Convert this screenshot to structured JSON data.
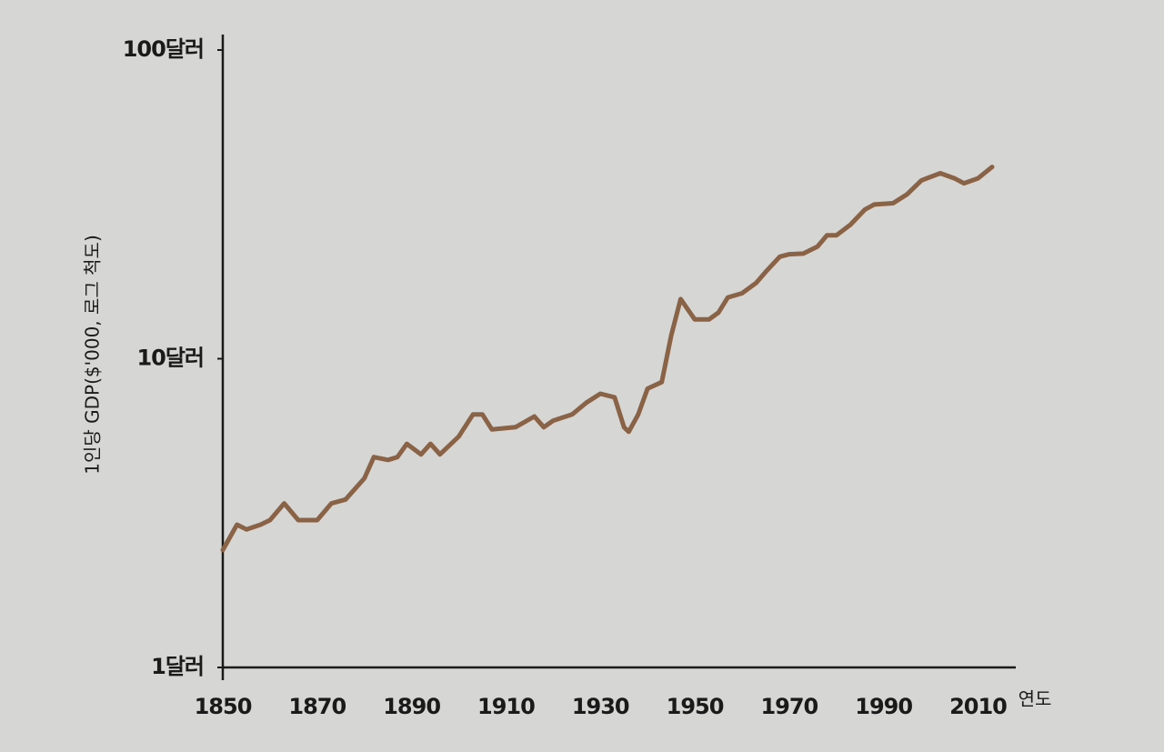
{
  "chart_data": {
    "type": "line",
    "x_label": "연도",
    "y_label": "1인당 GDP($'000, 로그 척도)",
    "x": [
      1850,
      1853,
      1855,
      1858,
      1860,
      1863,
      1866,
      1870,
      1873,
      1876,
      1880,
      1882,
      1885,
      1887,
      1889,
      1892,
      1894,
      1896,
      1900,
      1903,
      1905,
      1907,
      1912,
      1916,
      1918,
      1920,
      1924,
      1927,
      1930,
      1933,
      1935,
      1936,
      1938,
      1940,
      1943,
      1945,
      1947,
      1950,
      1953,
      1955,
      1957,
      1960,
      1963,
      1965,
      1968,
      1970,
      1973,
      1976,
      1978,
      1980,
      1983,
      1986,
      1988,
      1992,
      1995,
      1998,
      2002,
      2005,
      2007,
      2010,
      2013
    ],
    "values": [
      2.4,
      2.9,
      2.8,
      2.9,
      3.0,
      3.4,
      3.0,
      3.0,
      3.4,
      3.5,
      4.1,
      4.8,
      4.7,
      4.8,
      5.3,
      4.9,
      5.3,
      4.9,
      5.6,
      6.6,
      6.6,
      5.9,
      6.0,
      6.5,
      6.0,
      6.3,
      6.6,
      7.2,
      7.7,
      7.5,
      6.0,
      5.8,
      6.6,
      8.0,
      8.4,
      11.9,
      15.6,
      13.4,
      13.4,
      14.1,
      15.8,
      16.3,
      17.6,
      19.1,
      21.4,
      21.8,
      21.9,
      23.1,
      25.1,
      25.1,
      27.2,
      30.4,
      31.6,
      31.9,
      34.1,
      37.8,
      39.9,
      38.4,
      37.0,
      38.4,
      41.8
    ],
    "color": "#8a6246",
    "xlim": [
      1850,
      2018
    ],
    "xticks": [
      1850,
      1870,
      1890,
      1910,
      1930,
      1950,
      1970,
      1990,
      2010
    ],
    "ylim": [
      1,
      100
    ],
    "yticks": [
      {
        "value": 1,
        "label": "1달러"
      },
      {
        "value": 10,
        "label": "10달러"
      },
      {
        "value": 100,
        "label": "100달러"
      }
    ],
    "log_y": true
  }
}
